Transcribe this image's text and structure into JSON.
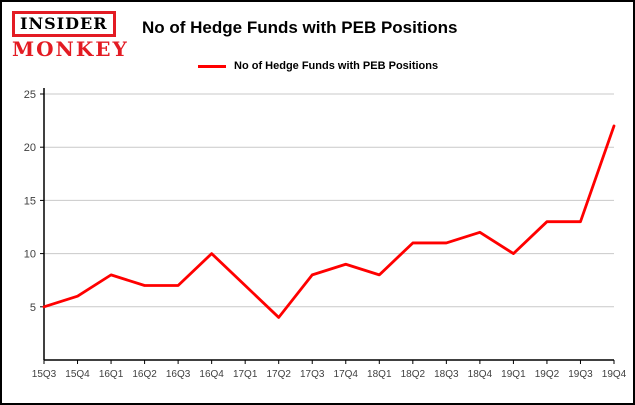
{
  "header": {
    "logo": {
      "line1": "INSIDER",
      "line2": "MONKEY",
      "brand_color": "#e31b23"
    },
    "title": "No of Hedge Funds with PEB Positions"
  },
  "legend": {
    "label": "No of Hedge Funds with PEB Positions",
    "color": "#ff0000",
    "position": "top-left"
  },
  "chart_data": {
    "type": "line",
    "title": "No of Hedge Funds with PEB Positions",
    "categories": [
      "15Q3",
      "15Q4",
      "16Q1",
      "16Q2",
      "16Q3",
      "16Q4",
      "17Q1",
      "17Q2",
      "17Q3",
      "17Q4",
      "18Q1",
      "18Q2",
      "18Q3",
      "18Q4",
      "19Q1",
      "19Q2",
      "19Q3",
      "19Q4"
    ],
    "series": [
      {
        "name": "No of Hedge Funds with PEB Positions",
        "values": [
          5,
          6,
          8,
          7,
          7,
          10,
          7,
          4,
          8,
          9,
          8,
          11,
          11,
          12,
          10,
          13,
          13,
          22
        ]
      }
    ],
    "xlabel": "",
    "ylabel": "",
    "ylim": [
      0,
      25
    ],
    "yticks": [
      5,
      10,
      15,
      20,
      25
    ],
    "grid": true,
    "grid_color": "#c9c9c9",
    "axis_color": "#000000",
    "tick_label_color": "#404040",
    "line_color": "#ff0000"
  }
}
